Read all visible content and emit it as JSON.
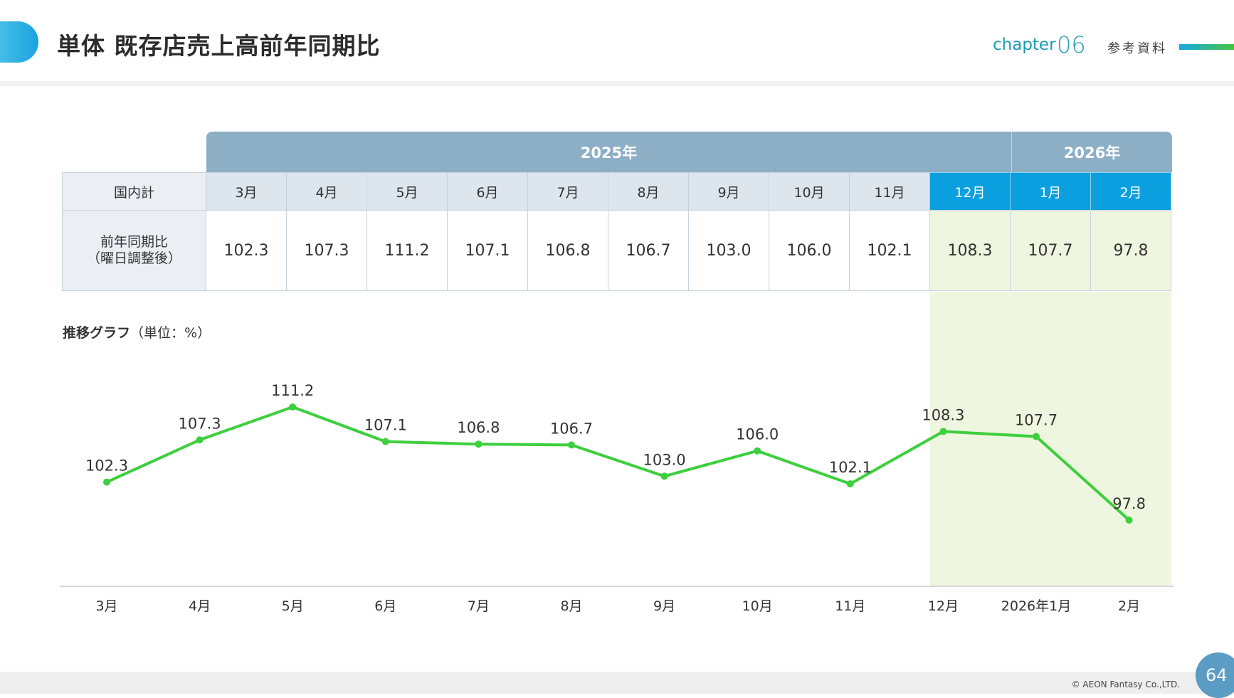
{
  "header": {
    "title": "単体 既存店売上高前年同期比",
    "chapter_label": "chapter",
    "chapter_number": "06",
    "section": "参考資料"
  },
  "table": {
    "years": [
      "2025年",
      "2026年"
    ],
    "row_header_label": "国内計",
    "value_row_label_line1": "前年同期比",
    "value_row_label_line2": "（曜日調整後）",
    "months": [
      "3月",
      "4月",
      "5月",
      "6月",
      "7月",
      "8月",
      "9月",
      "10月",
      "11月",
      "12月",
      "1月",
      "2月"
    ],
    "values": [
      "102.3",
      "107.3",
      "111.2",
      "107.1",
      "106.8",
      "106.7",
      "103.0",
      "106.0",
      "102.1",
      "108.3",
      "107.7",
      "97.8"
    ],
    "highlight_color": "#0aa0e0",
    "highlight_fill": "#eef6e0"
  },
  "graph": {
    "title": "推移グラフ",
    "unit": "（単位：%）"
  },
  "chart_data": {
    "type": "line",
    "categories": [
      "3月",
      "4月",
      "5月",
      "6月",
      "7月",
      "8月",
      "9月",
      "10月",
      "11月",
      "12月",
      "2026年1月",
      "2月"
    ],
    "series": [
      {
        "values": [
          102.3,
          107.3,
          111.2,
          107.1,
          106.8,
          106.7,
          103.0,
          106.0,
          102.1,
          108.3,
          107.7,
          97.8
        ],
        "color": "#3dcf3d"
      }
    ],
    "data_labels": [
      "102.3",
      "107.3",
      "111.2",
      "107.1",
      "106.8",
      "106.7",
      "103.0",
      "106.0",
      "102.1",
      "108.3",
      "107.7",
      "97.8"
    ],
    "highlighted_categories": [
      "12月",
      "2026年1月",
      "2月"
    ],
    "xlabel": "",
    "ylabel": "",
    "grid": false,
    "legend": "none"
  },
  "footer": {
    "copyright": "© AEON Fantasy Co.,LTD.",
    "page_number": "64"
  },
  "colors": {
    "accent": "#1aa3e0",
    "chapter": "#1c9bb2",
    "year_header": "#8dafc6",
    "line": "#3dcf3d"
  }
}
